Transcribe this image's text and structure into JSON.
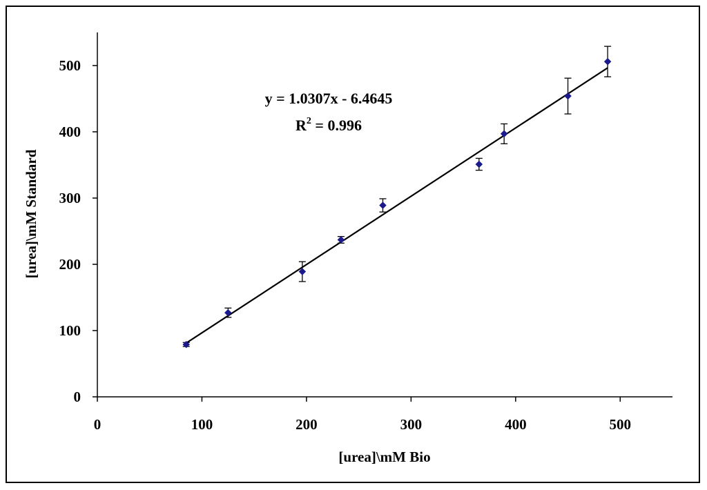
{
  "chart_data": {
    "type": "scatter",
    "xlabel": "[urea]\\mM Bio",
    "ylabel": "[urea]\\mM Standard",
    "xlim": [
      0,
      550
    ],
    "ylim": [
      0,
      550
    ],
    "x_ticks": [
      0,
      100,
      200,
      300,
      400,
      500
    ],
    "y_ticks": [
      0,
      100,
      200,
      300,
      400,
      500
    ],
    "x_tick_labels": [
      "0",
      "100",
      "200",
      "300",
      "400",
      "500"
    ],
    "y_tick_labels": [
      "0",
      "100",
      "200",
      "300",
      "400",
      "500"
    ],
    "grid": false,
    "marker_color": "#1a1a8c",
    "series": [
      {
        "x": [
          85,
          125,
          196,
          233,
          273,
          365,
          389,
          450,
          488
        ],
        "y": [
          79,
          127,
          189,
          237,
          289,
          351,
          397,
          454,
          506
        ],
        "error": [
          3,
          7,
          15,
          5,
          10,
          9,
          15,
          27,
          23
        ]
      }
    ],
    "trendline": {
      "slope": 1.0307,
      "intercept": -6.4645,
      "x_range": [
        85,
        488
      ],
      "equation": "y = 1.0307x - 6.4645",
      "r2_prefix": "R",
      "r2_exp": "2",
      "r2_value": " = 0.996"
    }
  }
}
